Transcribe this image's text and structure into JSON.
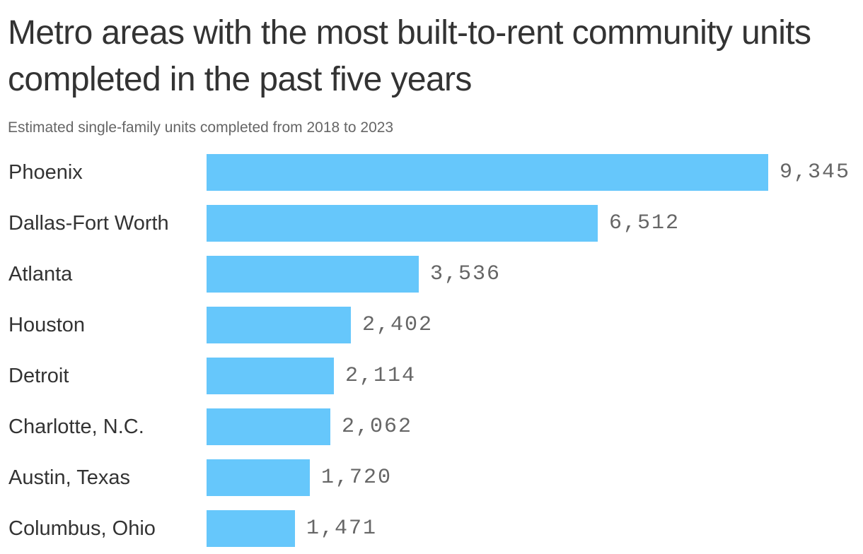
{
  "chart": {
    "title": "Metro areas with the most built-to-rent community units completed in the past five years",
    "subtitle": "Estimated single-family units completed from 2018 to 2023"
  },
  "colors": {
    "bar": "#66c7fb",
    "title_text": "#333333",
    "label_text": "#666666"
  },
  "chart_data": {
    "type": "bar",
    "orientation": "horizontal",
    "title": "Metro areas with the most built-to-rent community units completed in the past five years",
    "subtitle": "Estimated single-family units completed from 2018 to 2023",
    "xlabel": "",
    "ylabel": "",
    "categories": [
      "Phoenix",
      "Dallas-Fort Worth",
      "Atlanta",
      "Houston",
      "Detroit",
      "Charlotte, N.C.",
      "Austin, Texas",
      "Columbus, Ohio"
    ],
    "values": [
      9345,
      6512,
      3536,
      2402,
      2114,
      2062,
      1720,
      1471
    ],
    "value_labels": [
      "9,345",
      "6,512",
      "3,536",
      "2,402",
      "2,114",
      "2,062",
      "1,720",
      "1,471"
    ],
    "xlim": [
      0,
      9345
    ],
    "grid": false,
    "legend": "none"
  }
}
